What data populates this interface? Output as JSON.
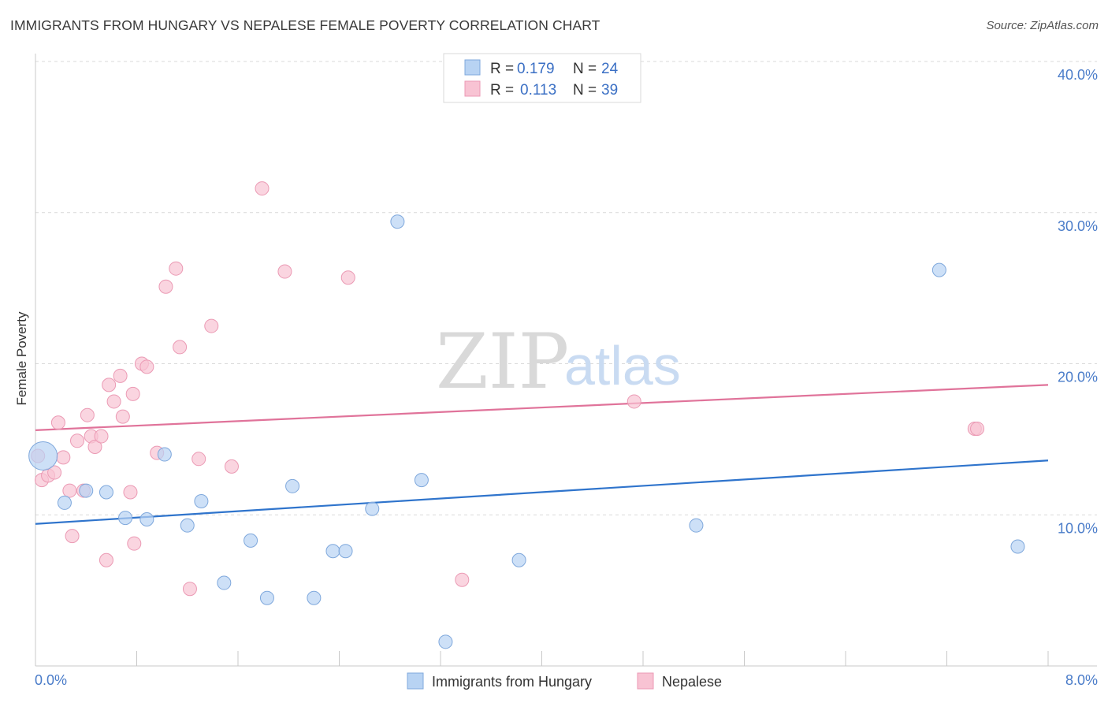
{
  "title": "IMMIGRANTS FROM HUNGARY VS NEPALESE FEMALE POVERTY CORRELATION CHART",
  "source": "Source: ZipAtlas.com",
  "watermark": {
    "zip": "ZIP",
    "atlas": "atlas"
  },
  "colors": {
    "blue_fill": "#b8d3f3",
    "blue_stroke": "#7fa8dc",
    "blue_line": "#2f74cc",
    "pink_fill": "#f8c3d3",
    "pink_stroke": "#eb9ab4",
    "pink_line": "#e0739a",
    "axis_label": "#4a7cc9",
    "grid": "#d9d9d9"
  },
  "legend": {
    "rows": [
      {
        "r_label": "R =",
        "r_value": "0.179",
        "n_label": "N =",
        "n_value": "24"
      },
      {
        "r_label": "R =",
        "r_value": "0.113",
        "n_label": "N =",
        "n_value": "39"
      }
    ]
  },
  "chart_data": {
    "type": "scatter",
    "title": "IMMIGRANTS FROM HUNGARY VS NEPALESE FEMALE POVERTY CORRELATION CHART",
    "xlabel": "",
    "ylabel": "Female Poverty",
    "xlim": [
      0,
      8.0
    ],
    "ylim": [
      0,
      40.0
    ],
    "x_tick_labels": [
      "0.0%",
      "8.0%"
    ],
    "y_ticks": [
      10,
      20,
      30,
      40
    ],
    "y_tick_labels": [
      "10.0%",
      "20.0%",
      "30.0%",
      "40.0%"
    ],
    "grid": true,
    "legend_position": "top-center",
    "series": [
      {
        "name": "Immigrants from Hungary",
        "r": 0.179,
        "n": 24,
        "trend": {
          "x": [
            0,
            8.0
          ],
          "y": [
            9.4,
            13.6
          ]
        },
        "points": [
          {
            "x": 0.06,
            "y": 13.9,
            "big": true
          },
          {
            "x": 0.23,
            "y": 10.8
          },
          {
            "x": 0.4,
            "y": 11.6
          },
          {
            "x": 0.56,
            "y": 11.5
          },
          {
            "x": 0.71,
            "y": 9.8
          },
          {
            "x": 0.88,
            "y": 9.7
          },
          {
            "x": 1.02,
            "y": 14.0
          },
          {
            "x": 1.2,
            "y": 9.3
          },
          {
            "x": 1.31,
            "y": 10.9
          },
          {
            "x": 1.49,
            "y": 5.5
          },
          {
            "x": 1.7,
            "y": 8.3
          },
          {
            "x": 1.83,
            "y": 4.5
          },
          {
            "x": 2.03,
            "y": 11.9
          },
          {
            "x": 2.2,
            "y": 4.5
          },
          {
            "x": 2.35,
            "y": 7.6
          },
          {
            "x": 2.45,
            "y": 7.6
          },
          {
            "x": 2.66,
            "y": 10.4
          },
          {
            "x": 2.86,
            "y": 29.4
          },
          {
            "x": 3.05,
            "y": 12.3
          },
          {
            "x": 3.24,
            "y": 1.6
          },
          {
            "x": 3.82,
            "y": 7.0
          },
          {
            "x": 5.22,
            "y": 9.3
          },
          {
            "x": 7.14,
            "y": 26.2
          },
          {
            "x": 7.76,
            "y": 7.9
          }
        ]
      },
      {
        "name": "Nepalese",
        "r": 0.113,
        "n": 39,
        "trend": {
          "x": [
            0,
            8.0
          ],
          "y": [
            15.6,
            18.6
          ]
        },
        "points": [
          {
            "x": 0.02,
            "y": 13.9
          },
          {
            "x": 0.05,
            "y": 12.3
          },
          {
            "x": 0.1,
            "y": 12.6
          },
          {
            "x": 0.15,
            "y": 12.8
          },
          {
            "x": 0.18,
            "y": 16.1
          },
          {
            "x": 0.22,
            "y": 13.8
          },
          {
            "x": 0.27,
            "y": 11.6
          },
          {
            "x": 0.29,
            "y": 8.6
          },
          {
            "x": 0.33,
            "y": 14.9
          },
          {
            "x": 0.38,
            "y": 11.6
          },
          {
            "x": 0.41,
            "y": 16.6
          },
          {
            "x": 0.44,
            "y": 15.2
          },
          {
            "x": 0.47,
            "y": 14.5
          },
          {
            "x": 0.52,
            "y": 15.2
          },
          {
            "x": 0.56,
            "y": 7.0
          },
          {
            "x": 0.58,
            "y": 18.6
          },
          {
            "x": 0.62,
            "y": 17.5
          },
          {
            "x": 0.67,
            "y": 19.2
          },
          {
            "x": 0.69,
            "y": 16.5
          },
          {
            "x": 0.75,
            "y": 11.5
          },
          {
            "x": 0.77,
            "y": 18.0
          },
          {
            "x": 0.78,
            "y": 8.1
          },
          {
            "x": 0.84,
            "y": 20.0
          },
          {
            "x": 0.88,
            "y": 19.8
          },
          {
            "x": 0.96,
            "y": 14.1
          },
          {
            "x": 1.03,
            "y": 25.1
          },
          {
            "x": 1.11,
            "y": 26.3
          },
          {
            "x": 1.14,
            "y": 21.1
          },
          {
            "x": 1.22,
            "y": 5.1
          },
          {
            "x": 1.29,
            "y": 13.7
          },
          {
            "x": 1.39,
            "y": 22.5
          },
          {
            "x": 1.55,
            "y": 13.2
          },
          {
            "x": 1.79,
            "y": 31.6
          },
          {
            "x": 1.97,
            "y": 26.1
          },
          {
            "x": 2.47,
            "y": 25.7
          },
          {
            "x": 3.37,
            "y": 5.7
          },
          {
            "x": 4.73,
            "y": 17.5
          },
          {
            "x": 7.42,
            "y": 15.7
          },
          {
            "x": 7.44,
            "y": 15.7
          }
        ]
      }
    ]
  }
}
